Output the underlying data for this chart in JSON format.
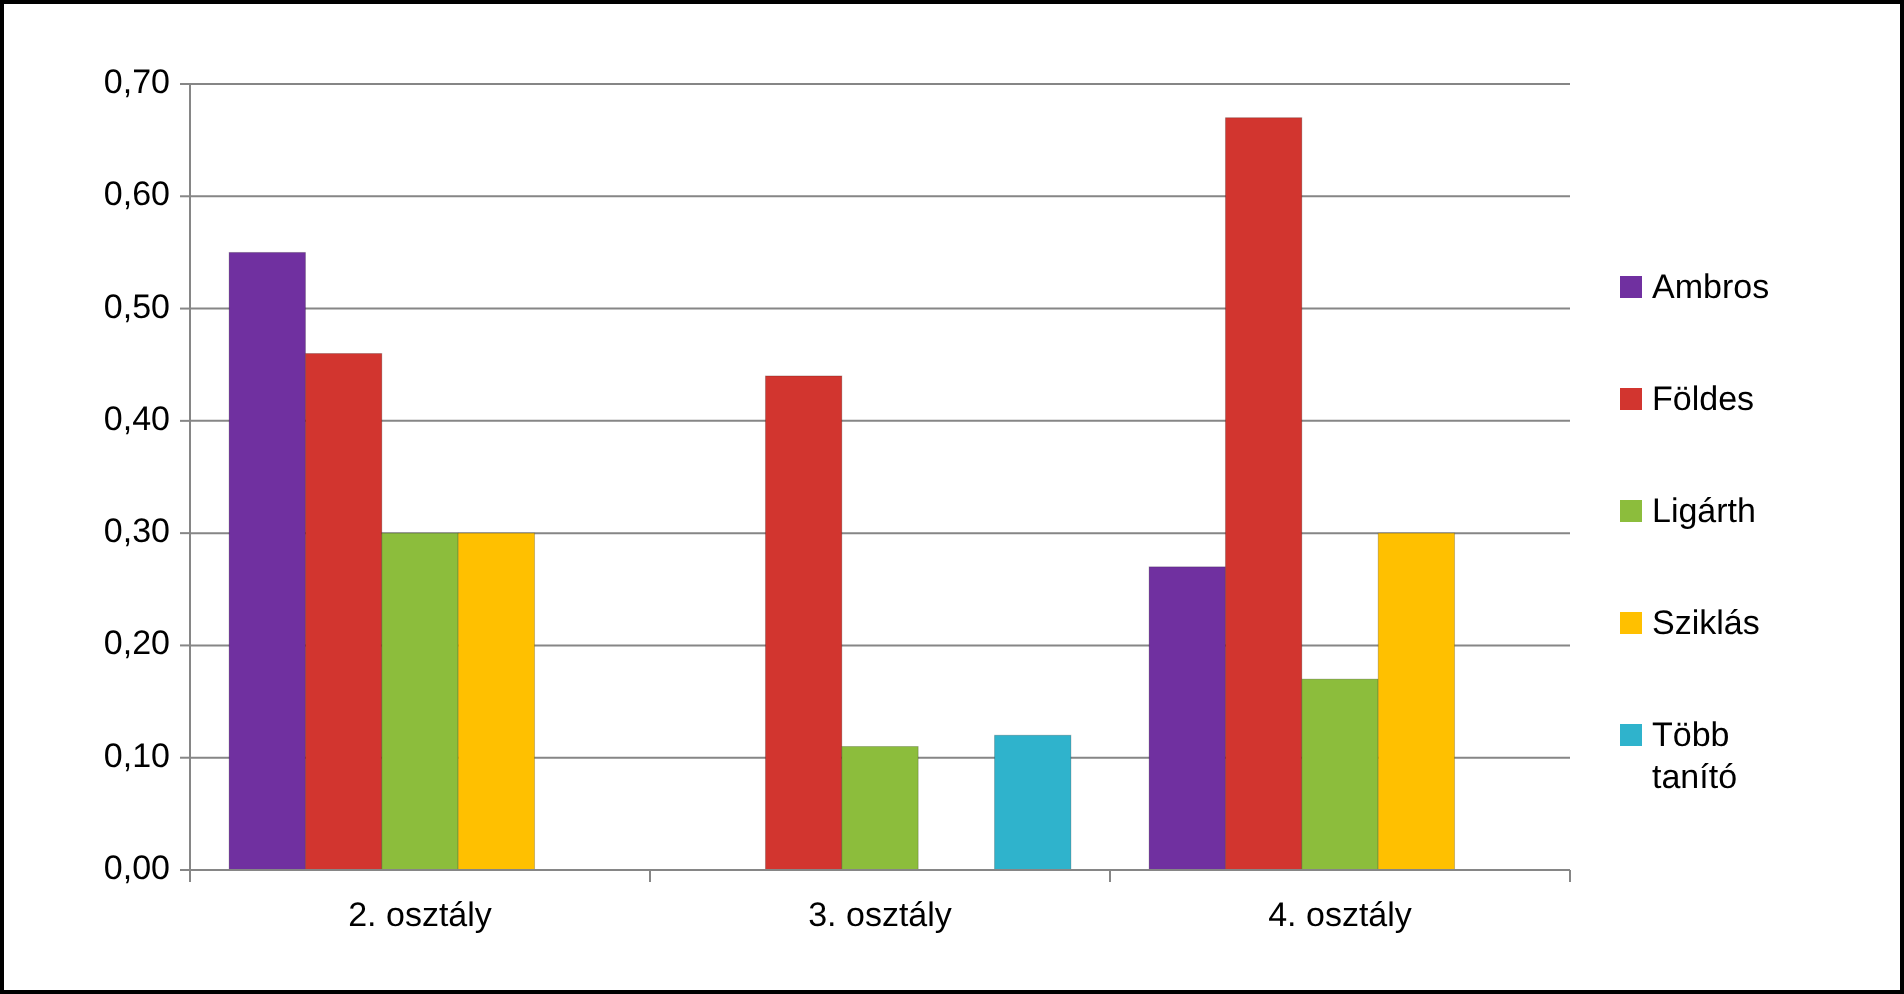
{
  "chart_data": {
    "type": "bar",
    "categories": [
      "2. osztály",
      "3. osztály",
      "4. osztály"
    ],
    "series": [
      {
        "name": "Ambros",
        "color": "#7030a0",
        "values": [
          0.55,
          null,
          0.27
        ]
      },
      {
        "name": "Földes",
        "color": "#d2352f",
        "values": [
          0.46,
          0.44,
          0.67
        ]
      },
      {
        "name": "Ligárth",
        "color": "#8cbd3c",
        "values": [
          0.3,
          0.11,
          0.17
        ]
      },
      {
        "name": "Sziklás",
        "color": "#ffc000",
        "values": [
          0.3,
          null,
          0.3
        ]
      },
      {
        "name": "Több tanító",
        "color": "#2fb3cc",
        "values": [
          null,
          0.12,
          null
        ]
      }
    ],
    "ylim": [
      0,
      0.7
    ],
    "yticks": [
      {
        "value": 0,
        "label": "0,00"
      },
      {
        "value": 0.1,
        "label": "0,10"
      },
      {
        "value": 0.2,
        "label": "0,20"
      },
      {
        "value": 0.3,
        "label": "0,30"
      },
      {
        "value": 0.4,
        "label": "0,40"
      },
      {
        "value": 0.5,
        "label": "0,50"
      },
      {
        "value": 0.6,
        "label": "0,60"
      },
      {
        "value": 0.7,
        "label": "0,70"
      }
    ],
    "grid": "y",
    "legend": "right"
  }
}
